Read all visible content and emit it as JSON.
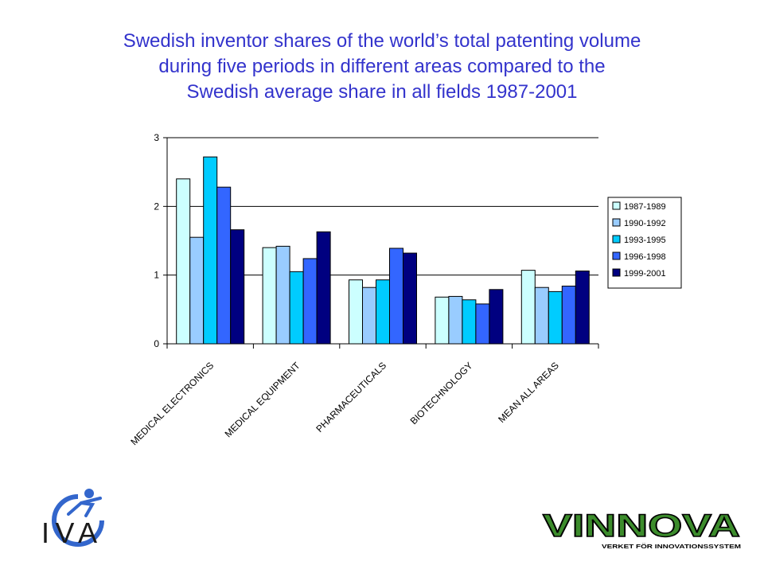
{
  "slide": {
    "title_lines": [
      "Swedish inventor shares of the world’s total patenting volume",
      "during five periods in different areas compared to the",
      "Swedish average share in all fields 1987-2001"
    ]
  },
  "chart_data": {
    "type": "bar",
    "categories": [
      "MEDICAL ELECTRONICS",
      "MEDICAL EQUIPMENT",
      "PHARMACEUTICALS",
      "BIOTECHNOLOGY",
      "MEAN ALL AREAS"
    ],
    "series": [
      {
        "name": "1987-1989",
        "color": "#ccffff",
        "values": [
          2.4,
          1.4,
          0.93,
          0.68,
          1.07
        ]
      },
      {
        "name": "1990-1992",
        "color": "#99ccff",
        "values": [
          1.55,
          1.42,
          0.82,
          0.69,
          0.82
        ]
      },
      {
        "name": "1993-1995",
        "color": "#00ccff",
        "values": [
          2.72,
          1.05,
          0.93,
          0.64,
          0.76
        ]
      },
      {
        "name": "1996-1998",
        "color": "#3366ff",
        "values": [
          2.28,
          1.24,
          1.39,
          0.58,
          0.84
        ]
      },
      {
        "name": "1999-2001",
        "color": "#000080",
        "values": [
          1.66,
          1.63,
          1.32,
          0.79,
          1.06
        ]
      }
    ],
    "ylim": [
      0,
      3
    ],
    "yticks": [
      "0",
      "1",
      "2",
      "3"
    ],
    "grid": true,
    "legend_position": "right"
  },
  "logos": {
    "iva_text": "IVA",
    "vinnova_text": "VINNOVA",
    "vinnova_tagline": "VERKET FÖR INNOVATIONSSYSTEM"
  }
}
